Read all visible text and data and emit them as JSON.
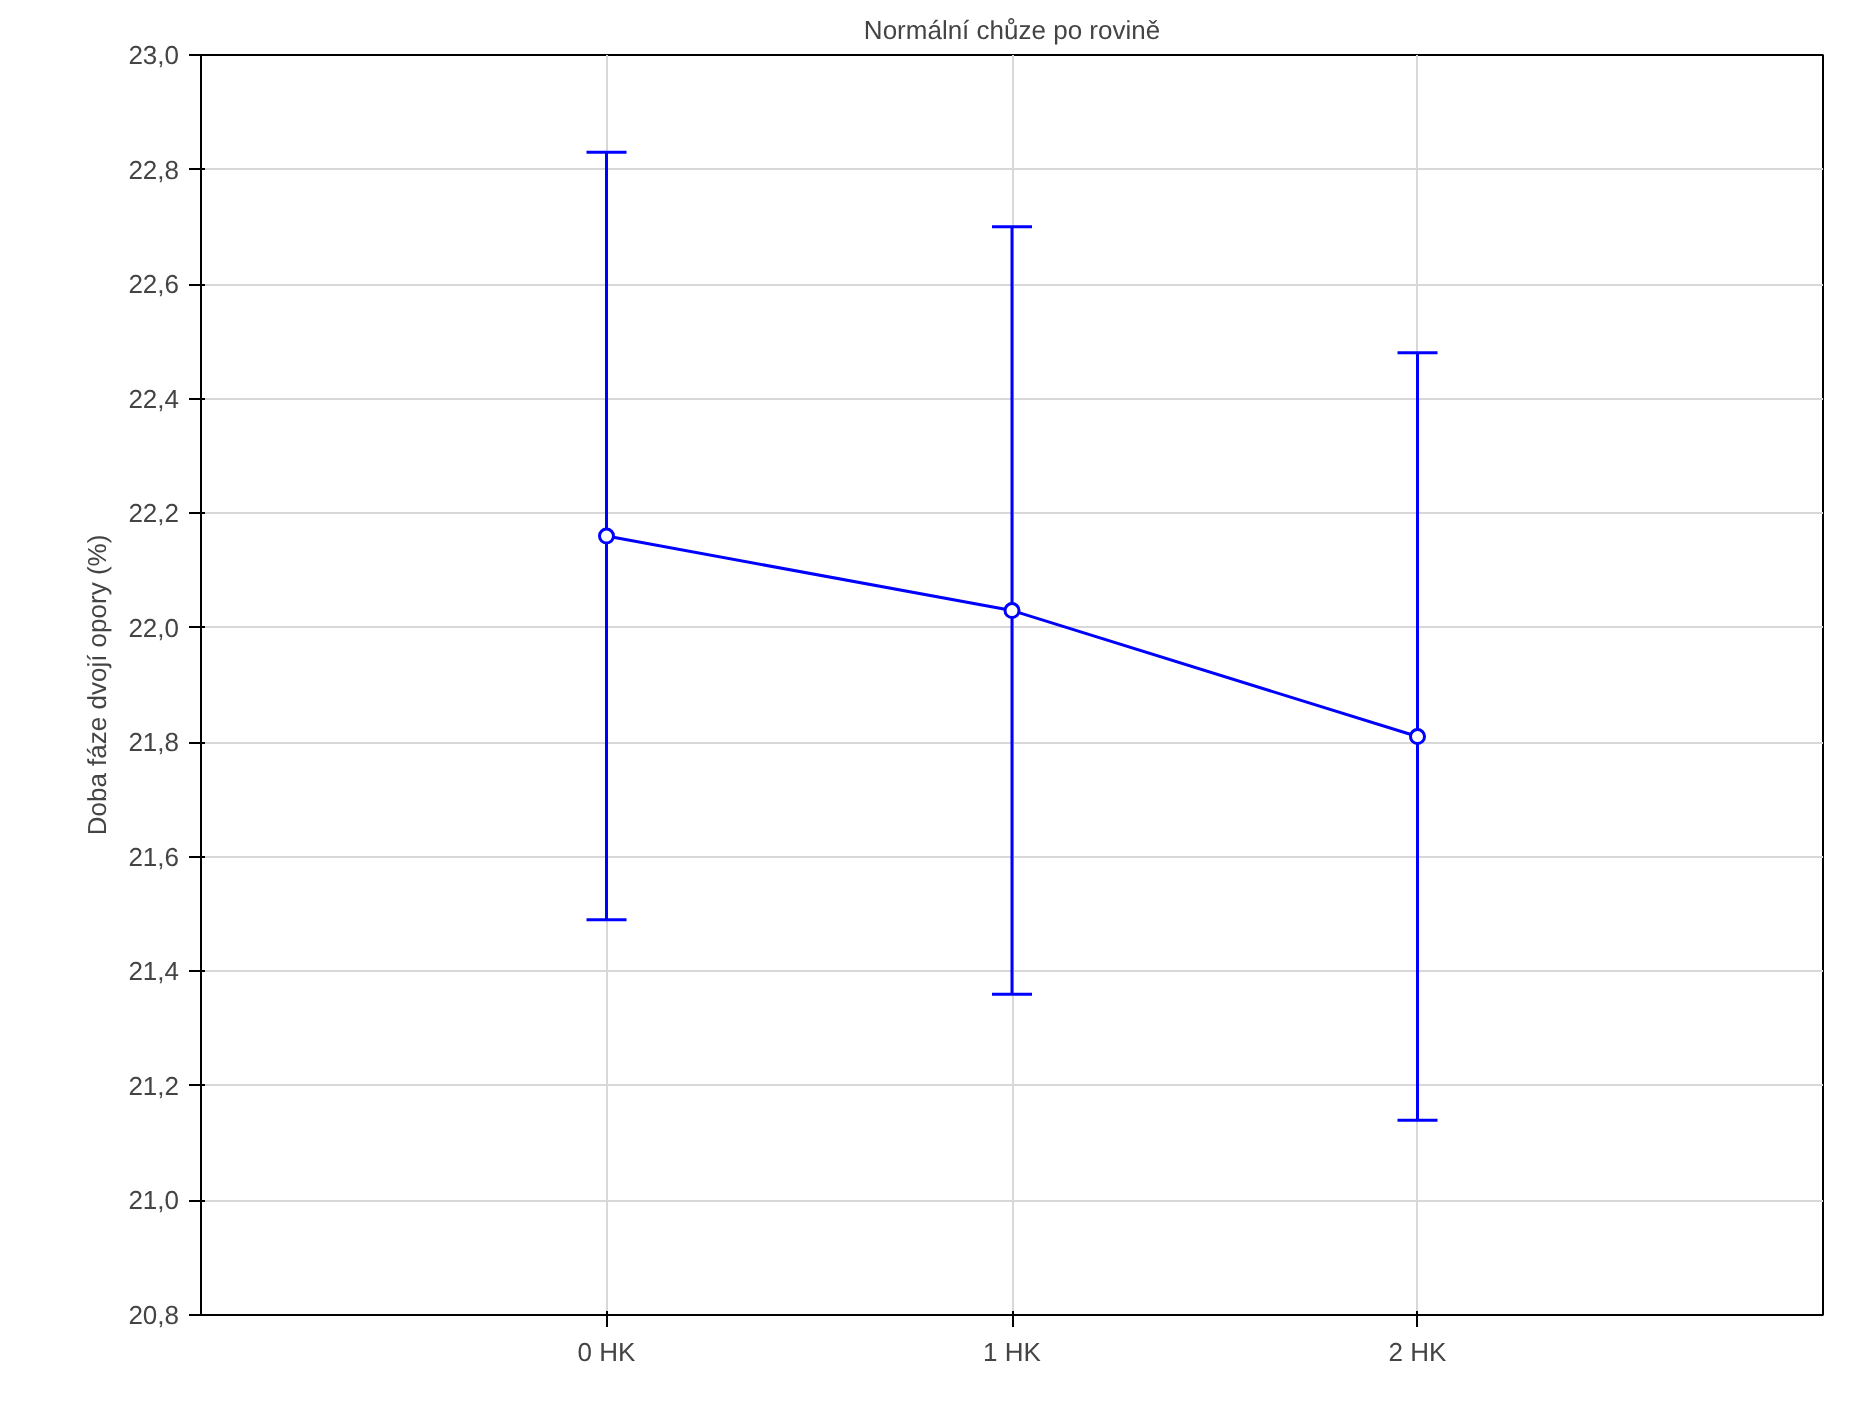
{
  "chart_data": {
    "type": "line",
    "title": "Normální chůze po rovině",
    "ylabel": "Doba fáze dvojí opory (%)",
    "categories": [
      "0 HK",
      "1 HK",
      "2 HK"
    ],
    "series": [
      {
        "color": "#0000ff",
        "values": [
          22.16,
          22.03,
          21.81
        ],
        "errors": [
          0.67,
          0.67,
          0.67
        ]
      }
    ],
    "ylim": [
      20.8,
      23.0
    ],
    "yticks": [
      {
        "value": 20.8,
        "label": "20,8"
      },
      {
        "value": 21.0,
        "label": "21,0"
      },
      {
        "value": 21.2,
        "label": "21,2"
      },
      {
        "value": 21.4,
        "label": "21,4"
      },
      {
        "value": 21.6,
        "label": "21,6"
      },
      {
        "value": 21.8,
        "label": "21,8"
      },
      {
        "value": 22.0,
        "label": "22,0"
      },
      {
        "value": 22.2,
        "label": "22,2"
      },
      {
        "value": 22.4,
        "label": "22,4"
      },
      {
        "value": 22.6,
        "label": "22,6"
      },
      {
        "value": 22.8,
        "label": "22,8"
      },
      {
        "value": 23.0,
        "label": "23,0"
      }
    ],
    "grid": true,
    "marker": "circle",
    "line_style": "solid"
  }
}
